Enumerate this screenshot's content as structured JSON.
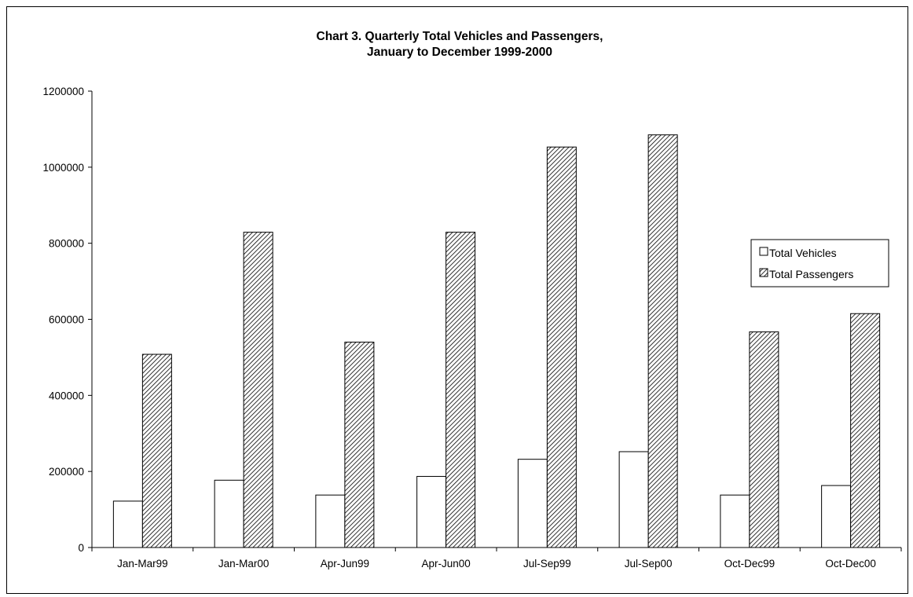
{
  "chart_data": {
    "type": "bar",
    "title": "Chart 3. Quarterly Total Vehicles and Passengers,",
    "subtitle": "January to December 1999-2000",
    "categories": [
      "Jan-Mar99",
      "Jan-Mar00",
      "Apr-Jun99",
      "Apr-Jun00",
      "Jul-Sep99",
      "Jul-Sep00",
      "Oct-Dec99",
      "Oct-Dec00"
    ],
    "series": [
      {
        "name": "Total Vehicles",
        "values": [
          122000,
          177000,
          138000,
          187000,
          232000,
          252000,
          138000,
          163000
        ]
      },
      {
        "name": "Total Passengers",
        "values": [
          508000,
          829000,
          540000,
          829000,
          1053000,
          1085000,
          567000,
          615000
        ]
      }
    ],
    "yticks": [
      "0",
      "200000",
      "400000",
      "600000",
      "800000",
      "1000000",
      "1200000"
    ],
    "ylim": [
      0,
      1200000
    ],
    "xlabel": "",
    "ylabel": "",
    "grid": false,
    "legend_position": "right",
    "colors": {
      "vehicles_fill": "#ffffff",
      "passengers_hatch": "#000000",
      "border": "#000000"
    }
  }
}
